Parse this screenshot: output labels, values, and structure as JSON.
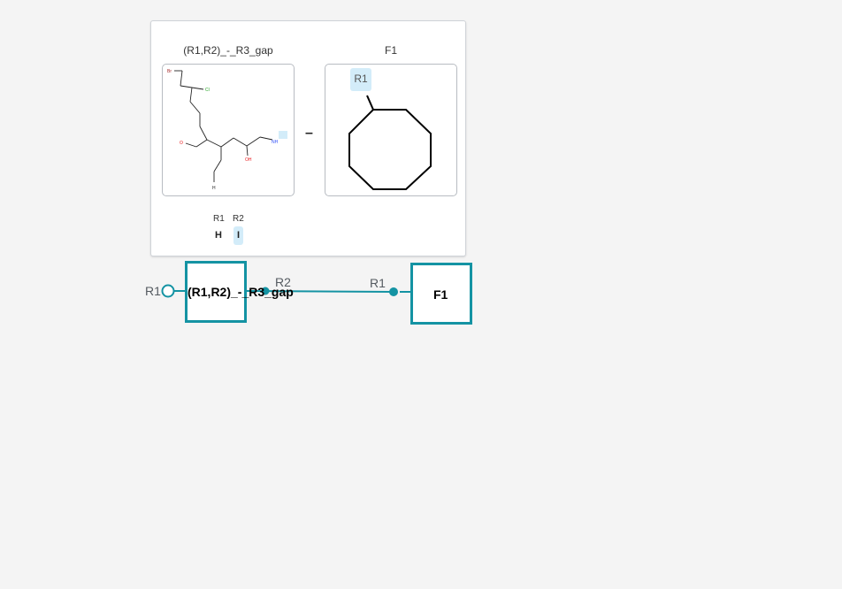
{
  "tooltip": {
    "monomer_a": {
      "title": "(R1,R2)_-_R3_gap",
      "atoms": {
        "br": "Br",
        "cl": "Cl",
        "o": "O",
        "nh": "NH",
        "oh": "OH",
        "h": "H"
      }
    },
    "connector": "–",
    "monomer_b": {
      "title": "F1",
      "attachment_label": "R1"
    },
    "rgroups": {
      "headers": [
        "R1",
        "R2"
      ],
      "values": [
        "H",
        "I"
      ],
      "highlighted": "R2"
    }
  },
  "sequence": {
    "node1": {
      "label": "(R1,R2)_-_R3_gap",
      "left_attachment": "R1",
      "right_attachment": "R2"
    },
    "node2": {
      "label": "F1",
      "left_attachment": "R1"
    }
  },
  "colors": {
    "accent": "#1493a3",
    "highlight": "#d3ecf9",
    "bromine": "#a52a2a",
    "chlorine": "#1fa21f",
    "oxygen": "#e8191b",
    "nitrogen": "#3050f8"
  }
}
